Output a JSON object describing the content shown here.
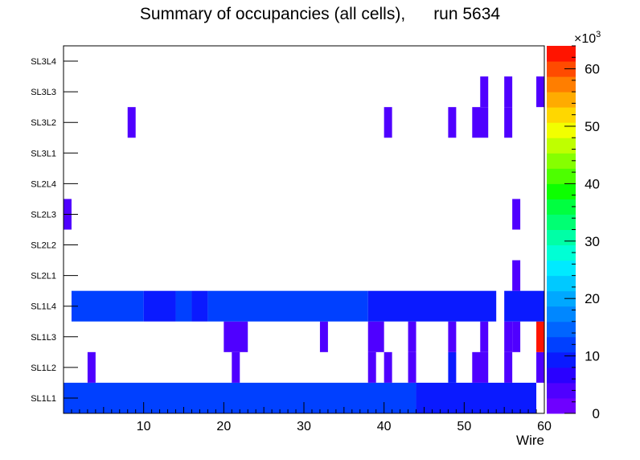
{
  "chart_data": {
    "type": "heatmap",
    "title": "Summary of occupancies (all cells),",
    "run_label": "run 5634",
    "xlabel": "Wire",
    "ylabel": "",
    "x_range": [
      0,
      60
    ],
    "x_ticks": [
      10,
      20,
      30,
      40,
      50,
      60
    ],
    "y_categories": [
      "SL1L1",
      "SL1L2",
      "SL1L3",
      "SL1L4",
      "SL2L1",
      "SL2L2",
      "SL2L3",
      "SL2L4",
      "SL3L1",
      "SL3L2",
      "SL3L3",
      "SL3L4"
    ],
    "z_range": [
      0,
      64000
    ],
    "z_ticks": [
      0,
      10,
      20,
      30,
      40,
      50,
      60
    ],
    "z_multiplier": "×10",
    "z_multiplier_exp": "3",
    "palette": [
      "#6f00ff",
      "#4f00ff",
      "#2a00ff",
      "#0a1aff",
      "#0040ff",
      "#0065ff",
      "#0087ff",
      "#00a8ff",
      "#00c9ff",
      "#00eaff",
      "#00ffd5",
      "#00ffa6",
      "#00ff73",
      "#00ff40",
      "#0dff00",
      "#4dff00",
      "#86ff00",
      "#bfff00",
      "#f2ff00",
      "#ffd700",
      "#ffab00",
      "#ff7e00",
      "#ff4b00",
      "#ff1400"
    ],
    "cells": [
      {
        "row": "SL1L1",
        "x0": 0,
        "x1": 44,
        "value": 11000
      },
      {
        "row": "SL1L1",
        "x0": 44,
        "x1": 59,
        "value": 8000
      },
      {
        "row": "SL1L2",
        "x0": 3,
        "x1": 4,
        "value": 3000
      },
      {
        "row": "SL1L2",
        "x0": 21,
        "x1": 22,
        "value": 3000
      },
      {
        "row": "SL1L2",
        "x0": 38,
        "x1": 39,
        "value": 3000
      },
      {
        "row": "SL1L2",
        "x0": 40,
        "x1": 41,
        "value": 3000
      },
      {
        "row": "SL1L2",
        "x0": 43,
        "x1": 44,
        "value": 3000
      },
      {
        "row": "SL1L2",
        "x0": 48,
        "x1": 49,
        "value": 9000
      },
      {
        "row": "SL1L2",
        "x0": 51,
        "x1": 53,
        "value": 3000
      },
      {
        "row": "SL1L2",
        "x0": 55,
        "x1": 56,
        "value": 3000
      },
      {
        "row": "SL1L2",
        "x0": 59,
        "x1": 60,
        "value": 3000
      },
      {
        "row": "SL1L3",
        "x0": 20,
        "x1": 23,
        "value": 3000
      },
      {
        "row": "SL1L3",
        "x0": 32,
        "x1": 33,
        "value": 3000
      },
      {
        "row": "SL1L3",
        "x0": 38,
        "x1": 40,
        "value": 3000
      },
      {
        "row": "SL1L3",
        "x0": 43,
        "x1": 44,
        "value": 3000
      },
      {
        "row": "SL1L3",
        "x0": 48,
        "x1": 49,
        "value": 3000
      },
      {
        "row": "SL1L3",
        "x0": 52,
        "x1": 53,
        "value": 3000
      },
      {
        "row": "SL1L3",
        "x0": 55,
        "x1": 56,
        "value": 5000
      },
      {
        "row": "SL1L3",
        "x0": 56,
        "x1": 57,
        "value": 3000
      },
      {
        "row": "SL1L3",
        "x0": 59,
        "x1": 60,
        "value": 63500
      },
      {
        "row": "SL1L4",
        "x0": 1,
        "x1": 10,
        "value": 11000
      },
      {
        "row": "SL1L4",
        "x0": 10,
        "x1": 14,
        "value": 8000
      },
      {
        "row": "SL1L4",
        "x0": 14,
        "x1": 16,
        "value": 11000
      },
      {
        "row": "SL1L4",
        "x0": 16,
        "x1": 18,
        "value": 8000
      },
      {
        "row": "SL1L4",
        "x0": 18,
        "x1": 38,
        "value": 11000
      },
      {
        "row": "SL1L4",
        "x0": 38,
        "x1": 54,
        "value": 8000
      },
      {
        "row": "SL1L4",
        "x0": 55,
        "x1": 60,
        "value": 8000
      },
      {
        "row": "SL2L1",
        "x0": 56,
        "x1": 57,
        "value": 3000
      },
      {
        "row": "SL2L3",
        "x0": 0,
        "x1": 1,
        "value": 3000
      },
      {
        "row": "SL2L3",
        "x0": 56,
        "x1": 57,
        "value": 3000
      },
      {
        "row": "SL3L2",
        "x0": 8,
        "x1": 9,
        "value": 3000
      },
      {
        "row": "SL3L2",
        "x0": 40,
        "x1": 41,
        "value": 3000
      },
      {
        "row": "SL3L2",
        "x0": 48,
        "x1": 49,
        "value": 3000
      },
      {
        "row": "SL3L2",
        "x0": 51,
        "x1": 53,
        "value": 3000
      },
      {
        "row": "SL3L2",
        "x0": 55,
        "x1": 56,
        "value": 3000
      },
      {
        "row": "SL3L3",
        "x0": 52,
        "x1": 53,
        "value": 3000
      },
      {
        "row": "SL3L3",
        "x0": 55,
        "x1": 56,
        "value": 3000
      },
      {
        "row": "SL3L3",
        "x0": 59,
        "x1": 60,
        "value": 3000
      }
    ]
  }
}
